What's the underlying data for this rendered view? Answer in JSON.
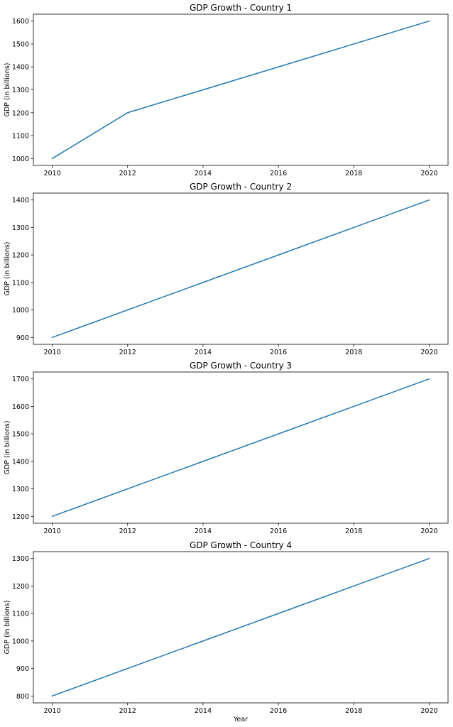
{
  "chart_data": [
    {
      "type": "line",
      "title": "GDP Growth - Country 1",
      "xlabel": "",
      "ylabel": "GDP (in billions)",
      "x": [
        2010,
        2012,
        2014,
        2016,
        2018,
        2020
      ],
      "series": [
        {
          "values": [
            1000,
            1200,
            1300,
            1400,
            1500,
            1600
          ]
        }
      ],
      "xlim": [
        2009.5,
        2020.5
      ],
      "ylim": [
        970,
        1630
      ],
      "xticks": [
        2010,
        2012,
        2014,
        2016,
        2018,
        2020
      ],
      "yticks": [
        1000,
        1100,
        1200,
        1300,
        1400,
        1500,
        1600
      ],
      "grid": false,
      "color": "#1f77b4"
    },
    {
      "type": "line",
      "title": "GDP Growth - Country 2",
      "xlabel": "",
      "ylabel": "GDP (in billions)",
      "x": [
        2010,
        2012,
        2014,
        2016,
        2018,
        2020
      ],
      "series": [
        {
          "values": [
            900,
            1000,
            1100,
            1200,
            1300,
            1400
          ]
        }
      ],
      "xlim": [
        2009.5,
        2020.5
      ],
      "ylim": [
        875,
        1425
      ],
      "xticks": [
        2010,
        2012,
        2014,
        2016,
        2018,
        2020
      ],
      "yticks": [
        900,
        1000,
        1100,
        1200,
        1300,
        1400
      ],
      "grid": false,
      "color": "#1f77b4"
    },
    {
      "type": "line",
      "title": "GDP Growth - Country 3",
      "xlabel": "",
      "ylabel": "GDP (in billions)",
      "x": [
        2010,
        2012,
        2014,
        2016,
        2018,
        2020
      ],
      "series": [
        {
          "values": [
            1200,
            1300,
            1400,
            1500,
            1600,
            1700
          ]
        }
      ],
      "xlim": [
        2009.5,
        2020.5
      ],
      "ylim": [
        1175,
        1725
      ],
      "xticks": [
        2010,
        2012,
        2014,
        2016,
        2018,
        2020
      ],
      "yticks": [
        1200,
        1300,
        1400,
        1500,
        1600,
        1700
      ],
      "grid": false,
      "color": "#1f77b4"
    },
    {
      "type": "line",
      "title": "GDP Growth - Country 4",
      "xlabel": "Year",
      "ylabel": "GDP (in billions)",
      "x": [
        2010,
        2012,
        2014,
        2016,
        2018,
        2020
      ],
      "series": [
        {
          "values": [
            800,
            900,
            1000,
            1100,
            1200,
            1300
          ]
        }
      ],
      "xlim": [
        2009.5,
        2020.5
      ],
      "ylim": [
        775,
        1325
      ],
      "xticks": [
        2010,
        2012,
        2014,
        2016,
        2018,
        2020
      ],
      "yticks": [
        800,
        900,
        1000,
        1100,
        1200,
        1300
      ],
      "grid": false,
      "color": "#1f77b4"
    }
  ]
}
